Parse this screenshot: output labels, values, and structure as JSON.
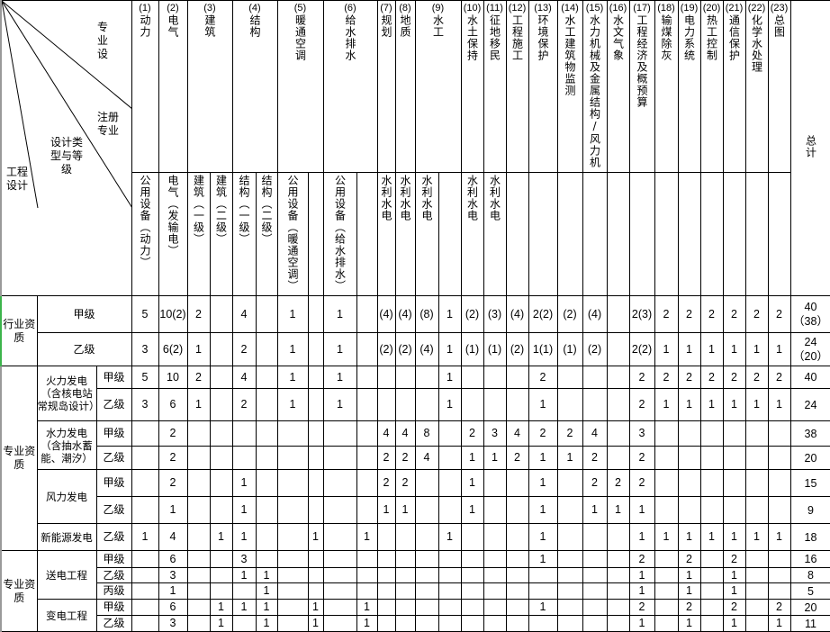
{
  "corner": {
    "top_label": "专业设",
    "reg_label": "注册专业",
    "type_label": "设计类型与等级",
    "eng_label": "工程设计"
  },
  "columns_top": [
    {
      "num": "(1)",
      "name": "动力",
      "span": 1
    },
    {
      "num": "(2)",
      "name": "电气",
      "span": 1
    },
    {
      "num": "(3)",
      "name": "建筑",
      "span": 2
    },
    {
      "num": "(4)",
      "name": "结构",
      "span": 2
    },
    {
      "num": "(5)",
      "name": "暖通空调",
      "span": 2
    },
    {
      "num": "(6)",
      "name": "给水排水",
      "span": 2
    },
    {
      "num": "(7)",
      "name": "规划",
      "span": 1
    },
    {
      "num": "(8)",
      "name": "地质",
      "span": 1
    },
    {
      "num": "(9)",
      "name": "水工",
      "span": 2
    },
    {
      "num": "(10)",
      "name": "水土保持",
      "span": 1
    },
    {
      "num": "(11)",
      "name": "征地移民",
      "span": 1
    },
    {
      "num": "(12)",
      "name": "工程施工",
      "span": 1
    },
    {
      "num": "(13)",
      "name": "环境保护",
      "span": 1
    },
    {
      "num": "(14)",
      "name": "水工建筑物监测",
      "span": 1
    },
    {
      "num": "(15)",
      "name": "水力机械及金属结构/风力机",
      "span": 1
    },
    {
      "num": "(16)",
      "name": "水文气象",
      "span": 1
    },
    {
      "num": "(17)",
      "name": "工程经济及概预算",
      "span": 1
    },
    {
      "num": "(18)",
      "name": "输煤除灰",
      "span": 1
    },
    {
      "num": "(19)",
      "name": "电力系统",
      "span": 1
    },
    {
      "num": "(20)",
      "name": "热工控制",
      "span": 1
    },
    {
      "num": "(21)",
      "name": "通信保护",
      "span": 1
    },
    {
      "num": "(22)",
      "name": "化学水处理",
      "span": 1
    },
    {
      "num": "(23)",
      "name": "总图",
      "span": 1
    }
  ],
  "total_label": "总计",
  "columns_registered": [
    "公用设备（动力）",
    "电气（发输电）",
    "建筑（一级）",
    "建筑（二级）",
    "结构（一级）",
    "结构（二级）",
    "公用设备（暖通空调）",
    "",
    "公用设备（给水排水）",
    "",
    "水利水电",
    "水利水电",
    "水利水电",
    "",
    "水利水电",
    "水利水电",
    "",
    "",
    "",
    "",
    "",
    "",
    "",
    "",
    "",
    "",
    "",
    ""
  ],
  "groups": [
    {
      "label": "行业资质",
      "rows": [
        {
          "type": "",
          "grade": "甲级",
          "values": [
            "5",
            "10(2)",
            "2",
            "",
            "4",
            "",
            "1",
            "",
            "1",
            "",
            "(4)",
            "(4)",
            "(8)",
            "1",
            "(2)",
            "(3)",
            "(4)",
            "2(2)",
            "(2)",
            "(4)",
            "",
            "2(3)",
            "2",
            "2",
            "2",
            "2",
            "2",
            "2",
            "40（38）"
          ]
        },
        {
          "type": "",
          "grade": "乙级",
          "values": [
            "3",
            "6(2)",
            "1",
            "",
            "2",
            "",
            "1",
            "",
            "1",
            "",
            "(2)",
            "(2)",
            "(4)",
            "1",
            "(1)",
            "(1)",
            "(2)",
            "1(1)",
            "(1)",
            "(2)",
            "",
            "2(2)",
            "1",
            "1",
            "1",
            "1",
            "1",
            "1",
            "24（20）"
          ]
        }
      ]
    },
    {
      "label": "专业资质",
      "rows": [
        {
          "type": "火力发电（含核电站常规岛设计）",
          "type_span": 2,
          "grade": "甲级",
          "values": [
            "5",
            "10",
            "2",
            "",
            "4",
            "",
            "1",
            "",
            "1",
            "",
            "",
            "",
            "",
            "1",
            "",
            "",
            "",
            "2",
            "",
            "",
            "",
            "2",
            "2",
            "2",
            "2",
            "2",
            "2",
            "2",
            "40"
          ]
        },
        {
          "grade": "乙级",
          "values": [
            "3",
            "6",
            "1",
            "",
            "2",
            "",
            "1",
            "",
            "1",
            "",
            "",
            "",
            "",
            "1",
            "",
            "",
            "",
            "1",
            "",
            "",
            "",
            "2",
            "1",
            "1",
            "1",
            "1",
            "1",
            "1",
            "24"
          ]
        },
        {
          "type": "水力发电（含抽水蓄能、潮汐）",
          "type_span": 2,
          "grade": "甲级",
          "values": [
            "",
            "2",
            "",
            "",
            "",
            "",
            "",
            "",
            "",
            "",
            "4",
            "4",
            "8",
            "",
            "2",
            "3",
            "4",
            "2",
            "2",
            "4",
            "",
            "3",
            "",
            "",
            "",
            "",
            "",
            "",
            "38"
          ]
        },
        {
          "grade": "乙级",
          "values": [
            "",
            "2",
            "",
            "",
            "",
            "",
            "",
            "",
            "",
            "",
            "2",
            "2",
            "4",
            "",
            "1",
            "1",
            "2",
            "1",
            "1",
            "2",
            "",
            "2",
            "",
            "",
            "",
            "",
            "",
            "",
            "20"
          ]
        },
        {
          "type": "风力发电",
          "type_span": 2,
          "grade": "甲级",
          "values": [
            "",
            "2",
            "",
            "",
            "1",
            "",
            "",
            "",
            "",
            "",
            "2",
            "2",
            "",
            "",
            "1",
            "",
            "",
            "1",
            "",
            "2",
            "2",
            "2",
            "",
            "",
            "",
            "",
            "",
            "",
            "15"
          ]
        },
        {
          "grade": "乙级",
          "values": [
            "",
            "1",
            "",
            "",
            "1",
            "",
            "",
            "",
            "",
            "",
            "1",
            "1",
            "",
            "",
            "1",
            "",
            "",
            "1",
            "",
            "1",
            "1",
            "1",
            "",
            "",
            "",
            "",
            "",
            "",
            "9"
          ]
        },
        {
          "type": "新能源发电",
          "type_span": 1,
          "grade": "乙级",
          "values": [
            "1",
            "4",
            "",
            "1",
            "1",
            "",
            "",
            "1",
            "",
            "1",
            "",
            "",
            "",
            "1",
            "",
            "",
            "",
            "1",
            "",
            "",
            "",
            "1",
            "1",
            "1",
            "1",
            "1",
            "1",
            "1",
            "18"
          ]
        }
      ]
    },
    {
      "label": "专业资质",
      "rows": [
        {
          "type": "送电工程",
          "type_span": 3,
          "grade": "甲级",
          "values": [
            "",
            "6",
            "",
            "",
            "3",
            "",
            "",
            "",
            "",
            "",
            "",
            "",
            "",
            "",
            "",
            "",
            "",
            "1",
            "",
            "",
            "",
            "2",
            "",
            "2",
            "",
            "2",
            "",
            "",
            "16"
          ]
        },
        {
          "grade": "乙级",
          "values": [
            "",
            "3",
            "",
            "",
            "1",
            "1",
            "",
            "",
            "",
            "",
            "",
            "",
            "",
            "",
            "",
            "",
            "",
            "",
            "",
            "",
            "",
            "1",
            "",
            "1",
            "",
            "1",
            "",
            "",
            "8"
          ]
        },
        {
          "grade": "丙级",
          "values": [
            "",
            "1",
            "",
            "",
            "",
            "1",
            "",
            "",
            "",
            "",
            "",
            "",
            "",
            "",
            "",
            "",
            "",
            "",
            "",
            "",
            "",
            "1",
            "",
            "1",
            "",
            "1",
            "",
            "",
            "5"
          ]
        },
        {
          "type": "变电工程",
          "type_span": 2,
          "grade": "甲级",
          "values": [
            "",
            "6",
            "",
            "1",
            "1",
            "1",
            "",
            "1",
            "",
            "1",
            "",
            "",
            "",
            "",
            "",
            "",
            "",
            "1",
            "",
            "",
            "",
            "2",
            "",
            "2",
            "",
            "2",
            "",
            "2",
            "20"
          ]
        },
        {
          "grade": "乙级",
          "values": [
            "",
            "3",
            "",
            "1",
            "",
            "1",
            "",
            "1",
            "",
            "1",
            "",
            "",
            "",
            "",
            "",
            "",
            "",
            "",
            "",
            "",
            "",
            "1",
            "",
            "1",
            "",
            "1",
            "",
            "1",
            "11"
          ]
        }
      ]
    }
  ]
}
